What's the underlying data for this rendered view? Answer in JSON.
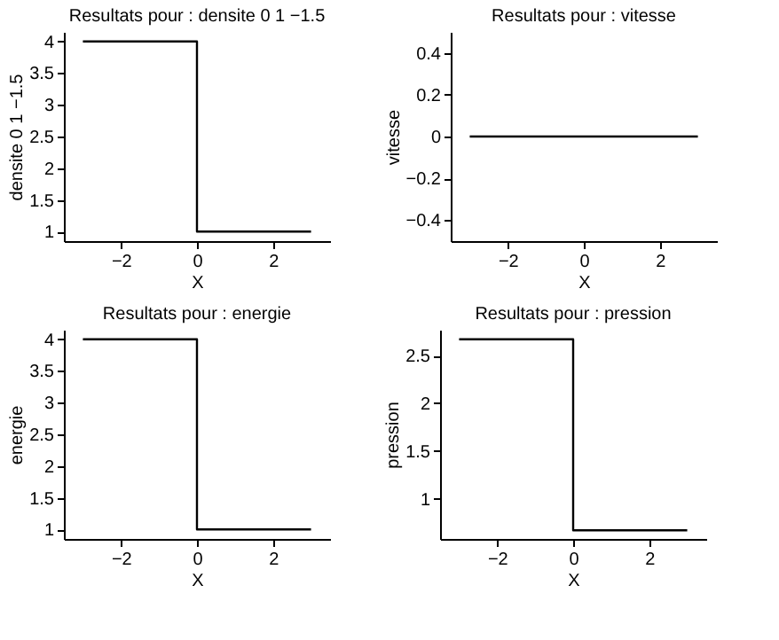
{
  "chart_data": [
    {
      "type": "line",
      "title": "Resultats pour : densite 0 1 −1.5",
      "xlabel": "X",
      "ylabel": "densite 0 1 −1.5",
      "x": [
        -3,
        0,
        0,
        3
      ],
      "series": [
        {
          "color": "#000000",
          "values": [
            4,
            4,
            1,
            1
          ]
        }
      ],
      "xlim": [
        -3.5,
        3.5
      ],
      "xticks": [
        -2,
        0,
        2
      ],
      "ylim": [
        0.85,
        4.15
      ],
      "yticks": [
        1,
        1.5,
        2,
        2.5,
        3,
        3.5,
        4
      ]
    },
    {
      "type": "line",
      "title": "Resultats pour : vitesse",
      "xlabel": "X",
      "ylabel": "vitesse",
      "x": [
        -3,
        3
      ],
      "series": [
        {
          "color": "#000000",
          "values": [
            0,
            0
          ]
        }
      ],
      "xlim": [
        -3.5,
        3.5
      ],
      "xticks": [
        -2,
        0,
        2
      ],
      "ylim": [
        -0.5,
        0.5
      ],
      "yticks": [
        -0.4,
        -0.2,
        0,
        0.2,
        0.4
      ]
    },
    {
      "type": "line",
      "title": "Resultats pour : energie",
      "xlabel": "X",
      "ylabel": "energie",
      "x": [
        -3,
        0,
        0,
        3
      ],
      "series": [
        {
          "color": "#000000",
          "values": [
            4,
            4,
            1,
            1
          ]
        }
      ],
      "xlim": [
        -3.5,
        3.5
      ],
      "xticks": [
        -2,
        0,
        2
      ],
      "ylim": [
        0.85,
        4.15
      ],
      "yticks": [
        1,
        1.5,
        2,
        2.5,
        3,
        3.5,
        4
      ]
    },
    {
      "type": "line",
      "title": "Resultats pour : pression",
      "xlabel": "X",
      "ylabel": "pression",
      "x": [
        -3,
        0,
        0,
        0,
        3
      ],
      "series": [
        {
          "color": "#000000",
          "values": [
            2.67,
            2.67,
            1.96,
            0.67,
            0.67
          ]
        }
      ],
      "xlim": [
        -3.5,
        3.5
      ],
      "xticks": [
        -2,
        0,
        2
      ],
      "ylim": [
        0.58,
        2.77
      ],
      "yticks": [
        1,
        1.5,
        2,
        2.5
      ]
    }
  ]
}
